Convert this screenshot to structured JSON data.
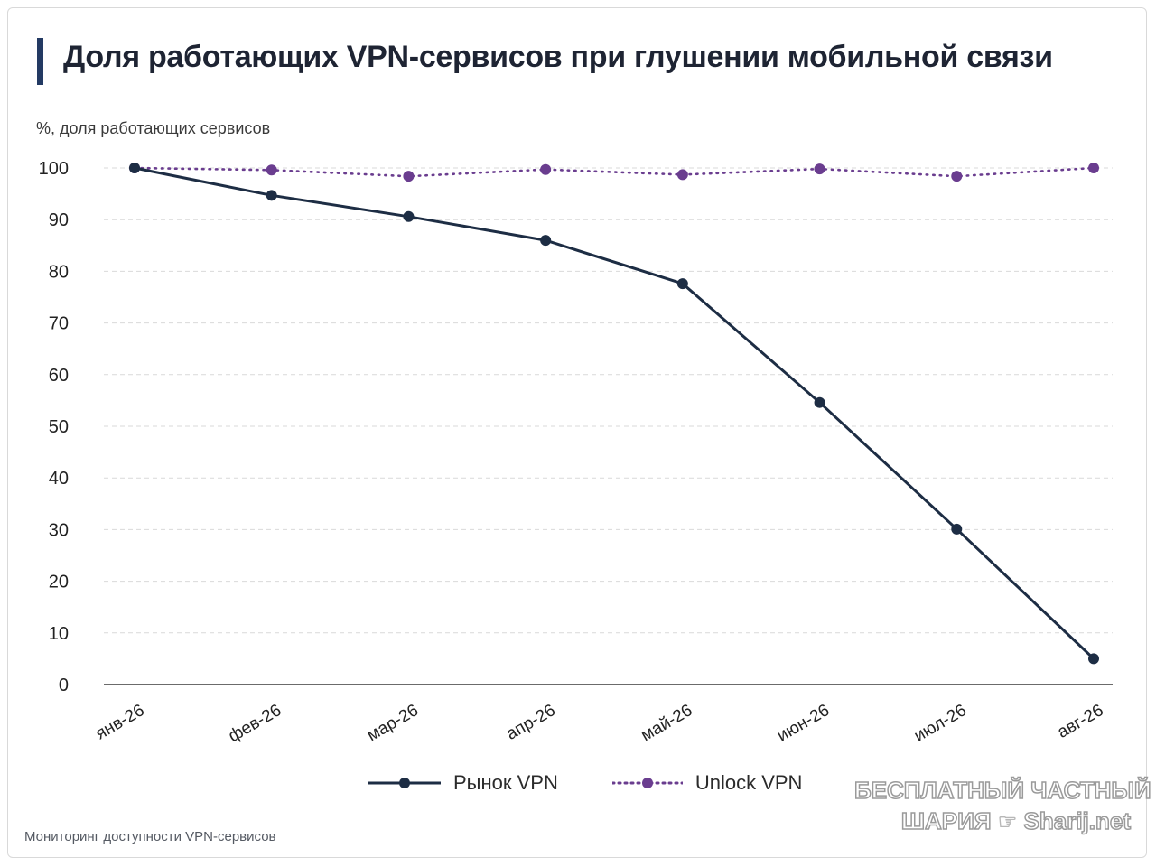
{
  "title": "Доля работающих VPN-сервисов при глушении мобильной связи",
  "source": "Мониторинг доступности VPN-сервисов",
  "watermark": {
    "line1": "БЕСПЛАТНЫЙ ЧАСТНЫЙ",
    "line2_left": "ШАРИЯ",
    "line2_right": "Sharij.net",
    "hand_icon": "pointing-hand-icon"
  },
  "colors": {
    "title_accent": "#233a63",
    "series_market": "#1d2d44",
    "series_unlock": "#6a3d8f",
    "grid": "#d9d9d9",
    "axis": "#3a3a3a"
  },
  "chart_data": {
    "type": "line",
    "title": "Доля работающих VPN-сервисов при глушении мобильной связи",
    "ylabel": "%, доля работающих сервисов",
    "xlabel": "",
    "ylim": [
      0,
      100
    ],
    "yticks": [
      0,
      10,
      20,
      30,
      40,
      50,
      60,
      70,
      80,
      90,
      100
    ],
    "categories": [
      "янв-26",
      "фев-26",
      "мар-26",
      "апр-26",
      "май-26",
      "июн-26",
      "июл-26",
      "авг-26"
    ],
    "grid": "horizontal dashed",
    "legend_position": "bottom",
    "series": [
      {
        "name": "Рынок VPN",
        "style": "solid",
        "color": "#1d2d44",
        "values": [
          100,
          94.7,
          90.6,
          86,
          77.6,
          54.6,
          30.1,
          5
        ]
      },
      {
        "name": "Unlock VPN",
        "style": "dotted",
        "color": "#6a3d8f",
        "values": [
          100,
          99.6,
          98.4,
          99.7,
          98.7,
          99.8,
          98.4,
          100
        ]
      }
    ]
  }
}
